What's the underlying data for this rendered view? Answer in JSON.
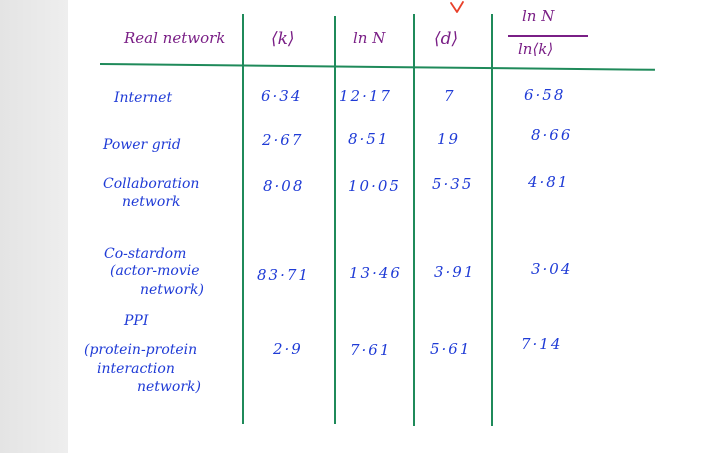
{
  "header": {
    "real_network": "Real network",
    "avg_k": "⟨k⟩",
    "ln_n": "ln N",
    "avg_d": "⟨d⟩",
    "ratio_num": "ln N",
    "ratio_den": "ln⟨k⟩"
  },
  "rows": [
    {
      "label_lines": [
        "Internet"
      ],
      "k": "6·34",
      "lnN": "12·17",
      "d": "7",
      "ratio": "6·58"
    },
    {
      "label_lines": [
        "Power grid"
      ],
      "k": "2·67",
      "lnN": "8·51",
      "d": "19",
      "ratio": "8·66"
    },
    {
      "label_lines": [
        "Collaboration",
        "network"
      ],
      "k": "8·08",
      "lnN": "10·05",
      "d": "5·35",
      "ratio": "4·81"
    },
    {
      "label_lines": [
        "Co-stardom",
        "(actor-movie",
        "network)"
      ],
      "k": "83·71",
      "lnN": "13·46",
      "d": "3·91",
      "ratio": "3·04"
    },
    {
      "label_lines": [
        "PPI",
        "(protein-protein",
        "interaction",
        "network)"
      ],
      "k": "2·9",
      "lnN": "7·61",
      "d": "5·61",
      "ratio": "7·14"
    }
  ],
  "colors": {
    "header_ink": "#7a1f86",
    "data_ink": "#1f3bd6",
    "rule_lines": "#1f8a5a",
    "pointer_mark": "#e8402a"
  }
}
